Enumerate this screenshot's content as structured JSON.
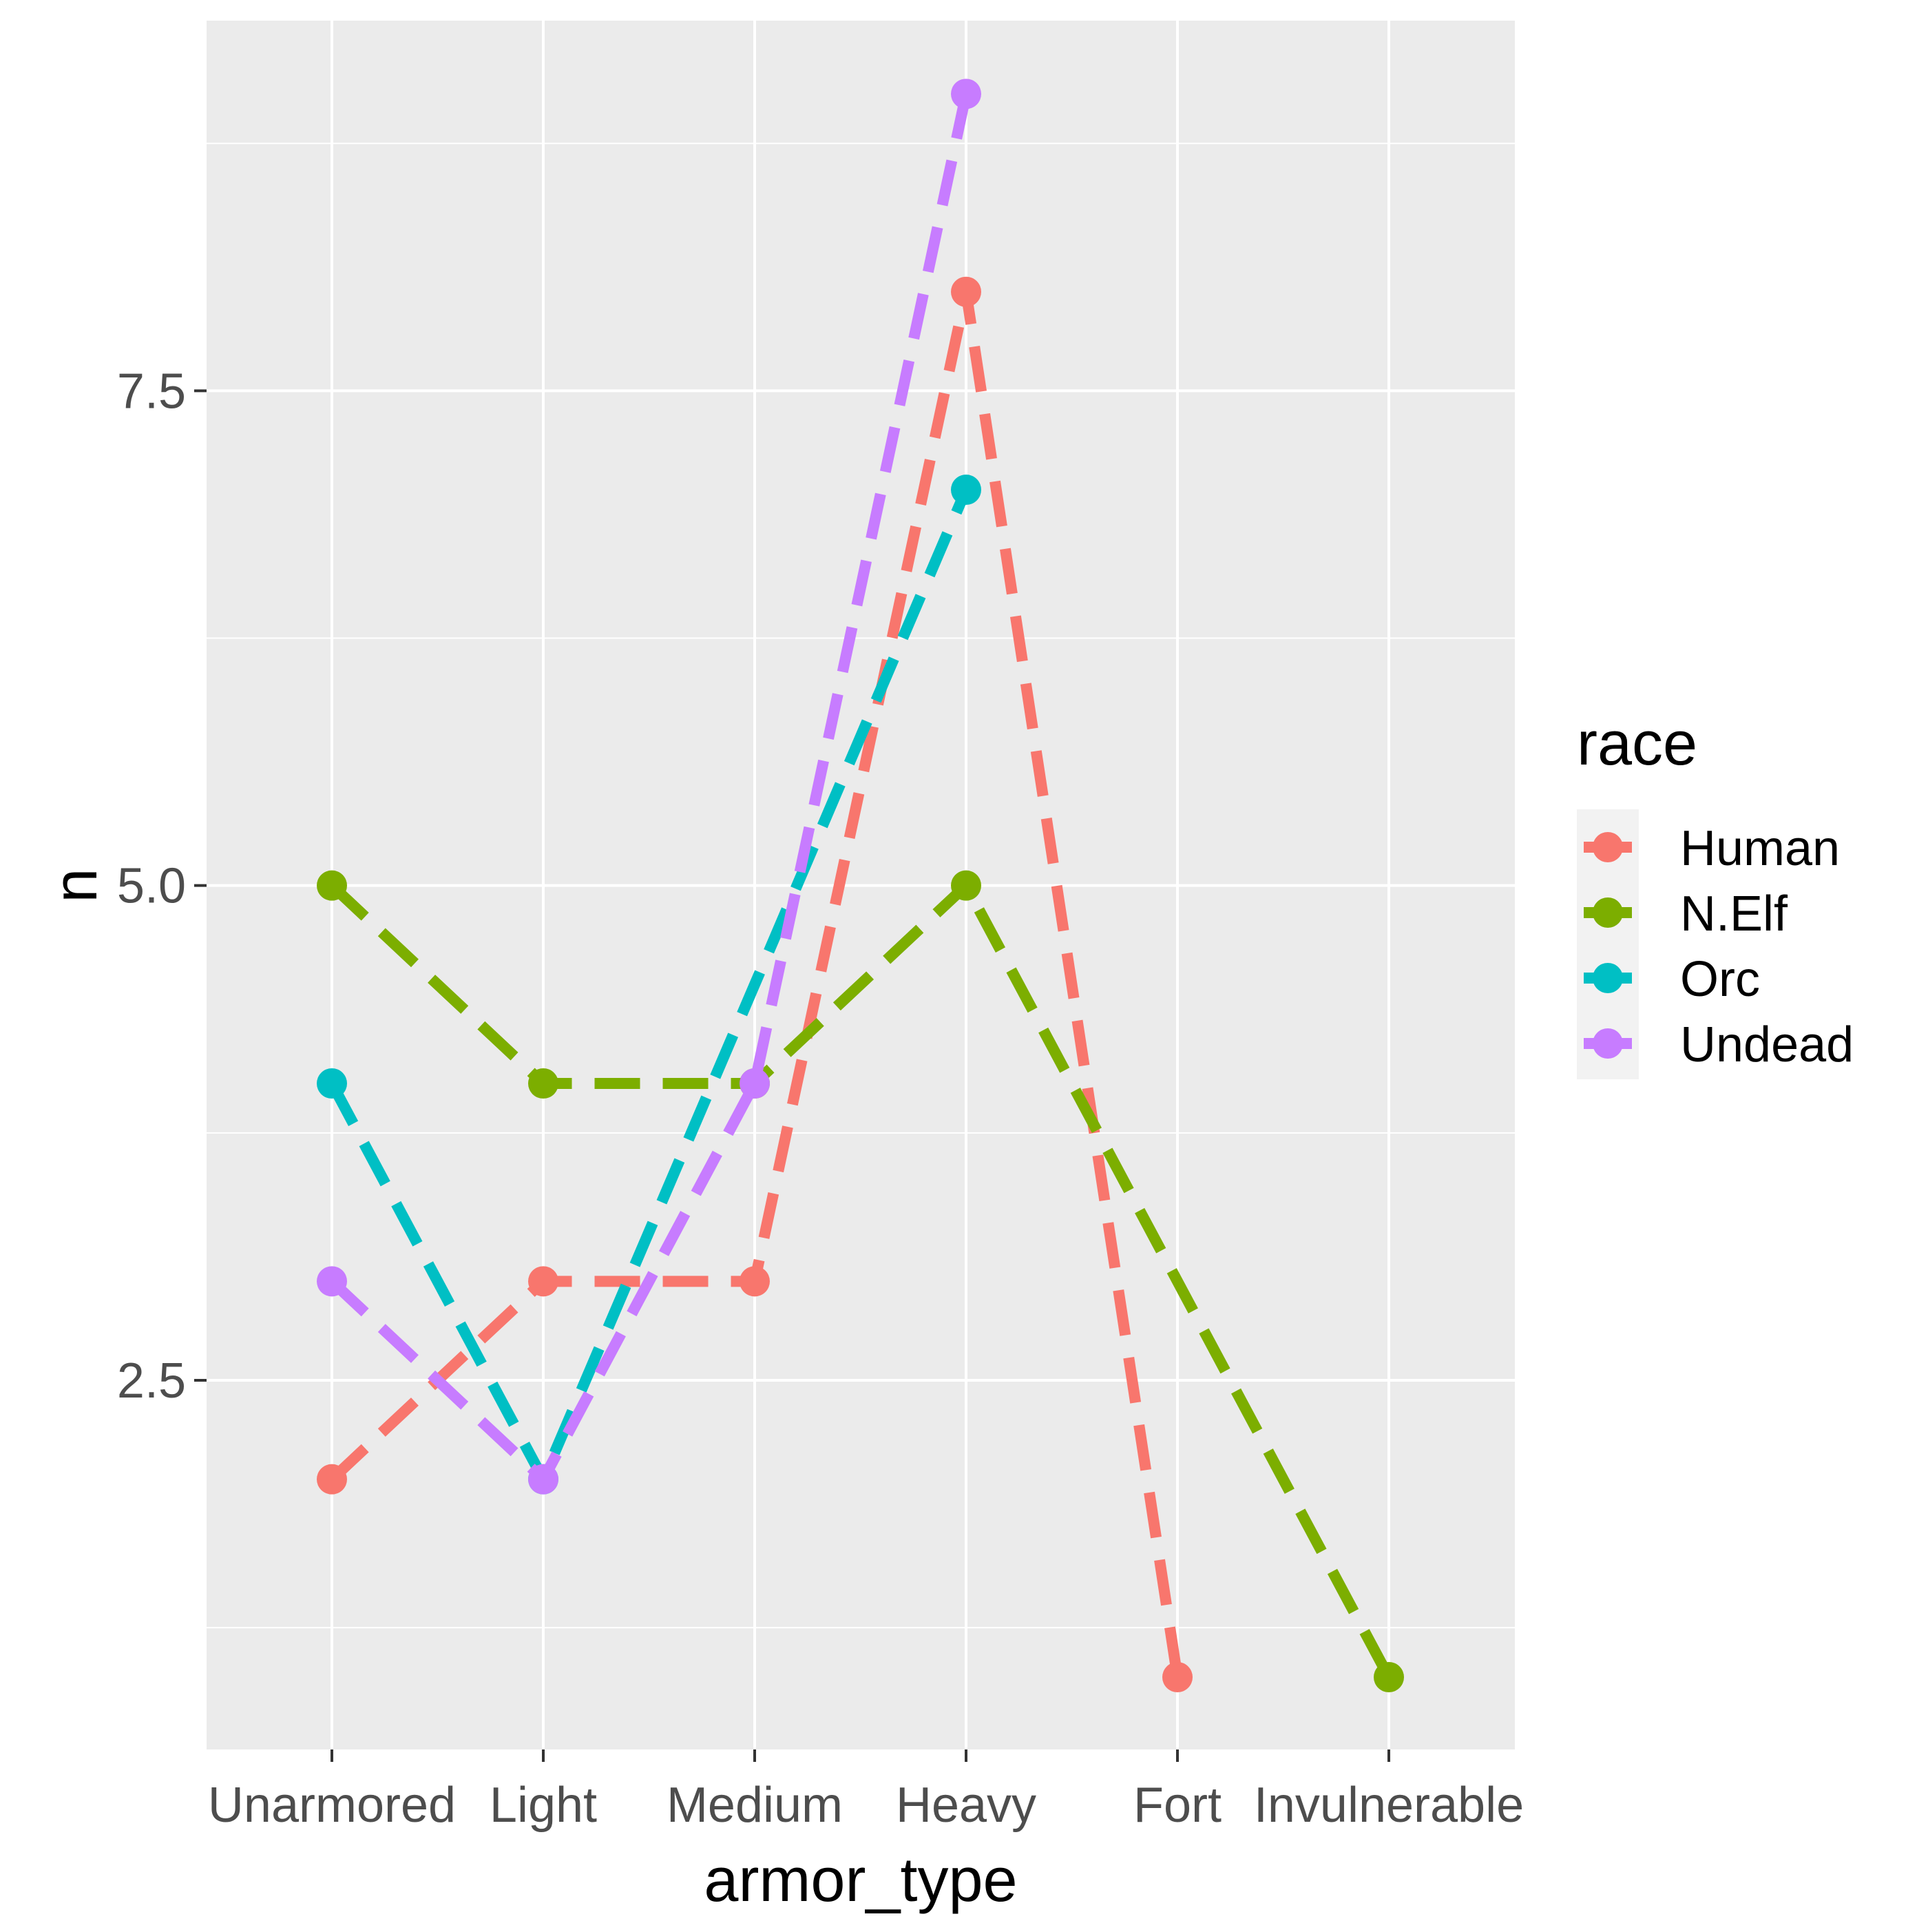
{
  "chart_data": {
    "type": "line",
    "categories": [
      "Unarmored",
      "Light",
      "Medium",
      "Heavy",
      "Fort",
      "Invulnerable"
    ],
    "xlabel": "armor_type",
    "ylabel": "n",
    "ylim": [
      0.4,
      9.2
    ],
    "yticks": [
      2.5,
      5.0,
      7.5
    ],
    "ytick_labels": [
      "2.5",
      "5.0",
      "7.5"
    ],
    "minor_y_gridlines": [
      1.25,
      3.75,
      6.25,
      8.75
    ],
    "grid": true,
    "legend": {
      "title": "race",
      "placement": "right"
    },
    "line_style": "dashed",
    "series": [
      {
        "name": "Human",
        "color": "#F8766D",
        "values": [
          2,
          3,
          3,
          8,
          1,
          null
        ]
      },
      {
        "name": "N.Elf",
        "color": "#7CAE00",
        "values": [
          5,
          4,
          4,
          5,
          null,
          1
        ]
      },
      {
        "name": "Orc",
        "color": "#00BFC4",
        "values": [
          4,
          2,
          null,
          7,
          null,
          null
        ]
      },
      {
        "name": "Undead",
        "color": "#C77CFF",
        "values": [
          3,
          2,
          4,
          9,
          null,
          null
        ]
      }
    ],
    "panel_background": "#EBEBEB",
    "gridline_color": "#FFFFFF"
  }
}
